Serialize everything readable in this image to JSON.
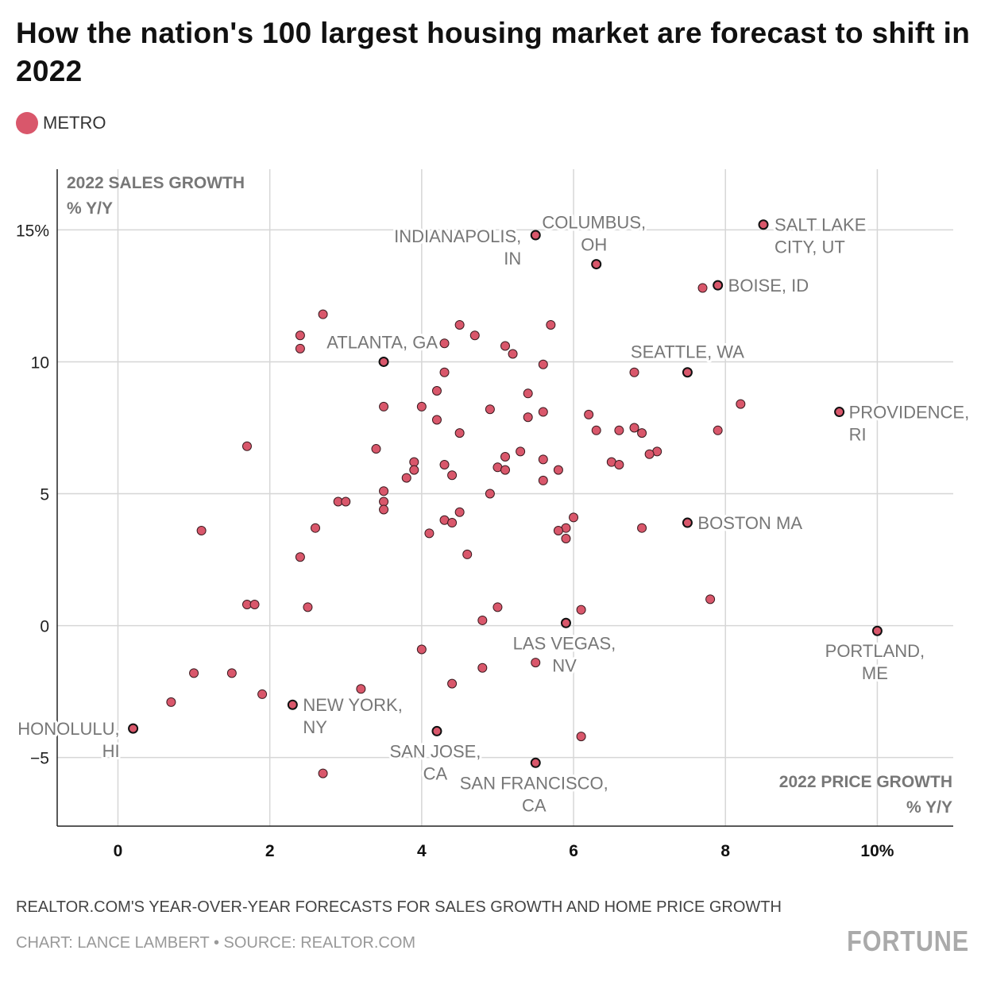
{
  "title": "How the nation's 100 largest housing market are forecast to shift in 2022",
  "legend": {
    "label": "METRO",
    "color": "#d9576b"
  },
  "note": "REALTOR.COM'S YEAR-OVER-YEAR FORECASTS FOR SALES GROWTH AND HOME PRICE GROWTH",
  "credit": "CHART: LANCE LAMBERT • SOURCE: REALTOR.COM",
  "logo": "FORTUNE",
  "chart_data": {
    "type": "scatter",
    "xlabel": "2022 PRICE GROWTH % Y/Y",
    "ylabel": "2022 SALES GROWTH % Y/Y",
    "xlim": [
      -0.8,
      11.0
    ],
    "ylim": [
      -7.6,
      17.3
    ],
    "grid": true,
    "x_ticks": [
      {
        "v": 0,
        "label": "0"
      },
      {
        "v": 2,
        "label": "2"
      },
      {
        "v": 4,
        "label": "4"
      },
      {
        "v": 6,
        "label": "6"
      },
      {
        "v": 8,
        "label": "8"
      },
      {
        "v": 10,
        "label": "10%"
      }
    ],
    "y_ticks": [
      {
        "v": 15,
        "label": "15%"
      },
      {
        "v": 10,
        "label": "10"
      },
      {
        "v": 5,
        "label": "5"
      },
      {
        "v": 0,
        "label": "0"
      },
      {
        "v": -5,
        "label": "−5"
      }
    ],
    "colors": {
      "point": "#d9576b",
      "stroke": "#3a1a1f",
      "grid": "#d6d6d6",
      "label": "#777777"
    },
    "labeled_points": [
      {
        "name": [
          "INDIANAPOLIS,",
          "IN"
        ],
        "x": 5.5,
        "y": 14.8
      },
      {
        "name": [
          "COLUMBUS,",
          "OH"
        ],
        "x": 6.3,
        "y": 13.7
      },
      {
        "name": [
          "SALT LAKE",
          "CITY, UT"
        ],
        "x": 8.5,
        "y": 15.2
      },
      {
        "name": [
          "BOISE, ID"
        ],
        "x": 7.9,
        "y": 12.9
      },
      {
        "name": [
          "ATLANTA, GA"
        ],
        "x": 3.5,
        "y": 10.0
      },
      {
        "name": [
          "SEATTLE, WA"
        ],
        "x": 7.5,
        "y": 9.6
      },
      {
        "name": [
          "PROVIDENCE,",
          "RI"
        ],
        "x": 9.5,
        "y": 8.1
      },
      {
        "name": [
          "BOSTON MA"
        ],
        "x": 7.5,
        "y": 3.9
      },
      {
        "name": [
          "LAS VEGAS,",
          "NV"
        ],
        "x": 5.9,
        "y": 0.1
      },
      {
        "name": [
          "PORTLAND,",
          "ME"
        ],
        "x": 10.0,
        "y": -0.2
      },
      {
        "name": [
          "NEW YORK,",
          "NY"
        ],
        "x": 2.3,
        "y": -3.0
      },
      {
        "name": [
          "HONOLULU,",
          "HI"
        ],
        "x": 0.2,
        "y": -3.9
      },
      {
        "name": [
          "SAN JOSE,",
          "CA"
        ],
        "x": 4.2,
        "y": -4.0
      },
      {
        "name": [
          "SAN FRANCISCO,",
          "CA"
        ],
        "x": 5.5,
        "y": -5.2
      }
    ],
    "points": [
      [
        7.7,
        12.8
      ],
      [
        2.7,
        11.8
      ],
      [
        2.4,
        11.0
      ],
      [
        2.4,
        10.5
      ],
      [
        4.5,
        11.4
      ],
      [
        4.7,
        11.0
      ],
      [
        5.7,
        11.4
      ],
      [
        4.3,
        10.7
      ],
      [
        5.1,
        10.6
      ],
      [
        5.2,
        10.3
      ],
      [
        5.6,
        9.9
      ],
      [
        4.3,
        9.6
      ],
      [
        6.8,
        9.6
      ],
      [
        4.2,
        8.9
      ],
      [
        5.4,
        8.8
      ],
      [
        8.2,
        8.4
      ],
      [
        3.5,
        8.3
      ],
      [
        4.0,
        8.3
      ],
      [
        4.9,
        8.2
      ],
      [
        5.6,
        8.1
      ],
      [
        6.2,
        8.0
      ],
      [
        4.2,
        7.8
      ],
      [
        5.4,
        7.9
      ],
      [
        6.3,
        7.4
      ],
      [
        6.6,
        7.4
      ],
      [
        6.8,
        7.5
      ],
      [
        6.9,
        7.3
      ],
      [
        7.9,
        7.4
      ],
      [
        4.5,
        7.3
      ],
      [
        1.7,
        6.8
      ],
      [
        3.4,
        6.7
      ],
      [
        5.3,
        6.6
      ],
      [
        7.1,
        6.6
      ],
      [
        7.0,
        6.5
      ],
      [
        5.1,
        6.4
      ],
      [
        5.6,
        6.3
      ],
      [
        3.9,
        6.2
      ],
      [
        6.5,
        6.2
      ],
      [
        6.6,
        6.1
      ],
      [
        4.3,
        6.1
      ],
      [
        5.0,
        6.0
      ],
      [
        5.1,
        5.9
      ],
      [
        3.9,
        5.9
      ],
      [
        5.8,
        5.9
      ],
      [
        4.4,
        5.7
      ],
      [
        3.8,
        5.6
      ],
      [
        5.6,
        5.5
      ],
      [
        3.5,
        5.1
      ],
      [
        4.9,
        5.0
      ],
      [
        2.9,
        4.7
      ],
      [
        3.0,
        4.7
      ],
      [
        3.5,
        4.7
      ],
      [
        3.5,
        4.4
      ],
      [
        4.5,
        4.3
      ],
      [
        6.0,
        4.1
      ],
      [
        4.3,
        4.0
      ],
      [
        4.4,
        3.9
      ],
      [
        1.1,
        3.6
      ],
      [
        2.6,
        3.7
      ],
      [
        5.9,
        3.7
      ],
      [
        5.8,
        3.6
      ],
      [
        6.9,
        3.7
      ],
      [
        4.1,
        3.5
      ],
      [
        5.9,
        3.3
      ],
      [
        4.6,
        2.7
      ],
      [
        2.4,
        2.6
      ],
      [
        7.8,
        1.0
      ],
      [
        1.7,
        0.8
      ],
      [
        1.8,
        0.8
      ],
      [
        2.5,
        0.7
      ],
      [
        5.0,
        0.7
      ],
      [
        6.1,
        0.6
      ],
      [
        4.8,
        0.2
      ],
      [
        4.0,
        -0.9
      ],
      [
        5.5,
        -1.4
      ],
      [
        4.8,
        -1.6
      ],
      [
        1.0,
        -1.8
      ],
      [
        1.5,
        -1.8
      ],
      [
        4.4,
        -2.2
      ],
      [
        3.2,
        -2.4
      ],
      [
        1.9,
        -2.6
      ],
      [
        0.7,
        -2.9
      ],
      [
        6.1,
        -4.2
      ],
      [
        2.7,
        -5.6
      ]
    ]
  }
}
